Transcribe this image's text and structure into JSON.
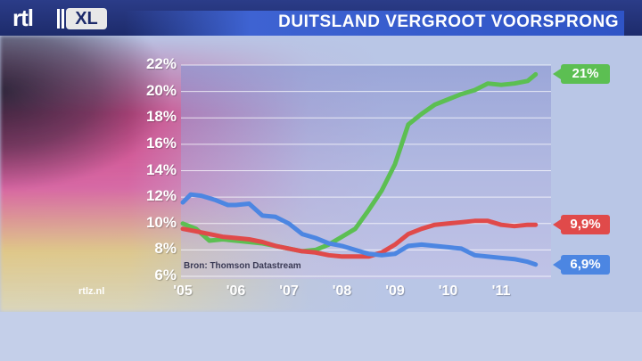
{
  "header": {
    "logo_text": "rtl",
    "logo_badge": "XL",
    "title": "DUITSLAND VERGROOT VOORSPRONG"
  },
  "footer": {
    "tag": "rtlz.nl"
  },
  "colors": {
    "green": "#5cbf52",
    "red": "#e04a4a",
    "blue": "#4c86e2"
  },
  "chart_data": {
    "type": "line",
    "title": "DUITSLAND VERGROOT VOORSPRONG",
    "source": "Bron: Thomson Datastream",
    "xlabel": "",
    "ylabel": "",
    "x_tick_labels": [
      "'05",
      "'06",
      "'07",
      "'08",
      "'09",
      "'10",
      "'11"
    ],
    "y_tick_labels": [
      "6%",
      "8%",
      "10%",
      "12%",
      "14%",
      "16%",
      "18%",
      "20%",
      "22%"
    ],
    "ylim": [
      6,
      22
    ],
    "xlim": [
      2005.0,
      2011.8
    ],
    "grid": "horizontal",
    "legend": "end labels at right",
    "series": [
      {
        "color": "green",
        "end_label": "21%",
        "x": [
          2005.0,
          2005.25,
          2005.5,
          2005.75,
          2006.0,
          2006.25,
          2006.5,
          2006.75,
          2007.0,
          2007.25,
          2007.5,
          2007.75,
          2008.0,
          2008.25,
          2008.5,
          2008.75,
          2009.0,
          2009.25,
          2009.5,
          2009.75,
          2010.0,
          2010.25,
          2010.5,
          2010.75,
          2011.0,
          2011.25,
          2011.5,
          2011.65
        ],
        "y": [
          10.0,
          9.6,
          8.7,
          8.8,
          8.7,
          8.6,
          8.5,
          8.3,
          8.1,
          7.9,
          8.0,
          8.4,
          9.0,
          9.6,
          11.0,
          12.5,
          14.5,
          17.5,
          18.3,
          19.0,
          19.4,
          19.8,
          20.1,
          20.6,
          20.5,
          20.6,
          20.8,
          21.3
        ]
      },
      {
        "color": "red",
        "end_label": "9,9%",
        "x": [
          2005.0,
          2005.25,
          2005.5,
          2005.75,
          2006.0,
          2006.25,
          2006.5,
          2006.75,
          2007.0,
          2007.25,
          2007.5,
          2007.75,
          2008.0,
          2008.25,
          2008.5,
          2008.75,
          2009.0,
          2009.25,
          2009.5,
          2009.75,
          2010.0,
          2010.25,
          2010.5,
          2010.75,
          2011.0,
          2011.25,
          2011.5,
          2011.65
        ],
        "y": [
          9.6,
          9.4,
          9.2,
          9.0,
          8.9,
          8.8,
          8.6,
          8.3,
          8.1,
          7.9,
          7.8,
          7.6,
          7.5,
          7.5,
          7.5,
          7.8,
          8.4,
          9.2,
          9.6,
          9.9,
          10.0,
          10.1,
          10.2,
          10.2,
          9.9,
          9.8,
          9.9,
          9.9
        ]
      },
      {
        "color": "blue",
        "end_label": "6,9%",
        "x": [
          2005.0,
          2005.15,
          2005.35,
          2005.6,
          2005.85,
          2006.0,
          2006.25,
          2006.5,
          2006.75,
          2007.0,
          2007.25,
          2007.5,
          2007.75,
          2008.0,
          2008.25,
          2008.5,
          2008.75,
          2009.0,
          2009.25,
          2009.5,
          2009.75,
          2010.0,
          2010.25,
          2010.5,
          2010.75,
          2011.0,
          2011.25,
          2011.5,
          2011.65
        ],
        "y": [
          11.6,
          12.2,
          12.1,
          11.8,
          11.4,
          11.4,
          11.5,
          10.6,
          10.5,
          10.0,
          9.2,
          8.9,
          8.5,
          8.3,
          8.0,
          7.7,
          7.6,
          7.7,
          8.3,
          8.4,
          8.3,
          8.2,
          8.1,
          7.6,
          7.5,
          7.4,
          7.3,
          7.1,
          6.9
        ]
      }
    ]
  }
}
